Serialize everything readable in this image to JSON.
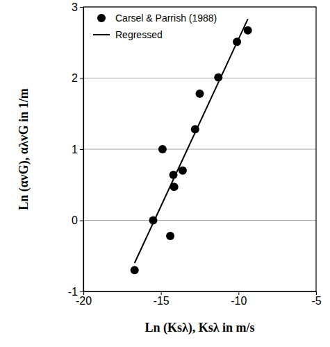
{
  "chart_data": {
    "type": "scatter",
    "x_label": "Ln (Ksλ), Ksλ in m/s",
    "y_label": "Ln (αvG), αλvG in 1/m",
    "xlim": [
      -20,
      -5
    ],
    "xticks": [
      -20,
      -15,
      -10,
      -5
    ],
    "ylim": [
      -1,
      3
    ],
    "yticks": [
      -1,
      0,
      1,
      2,
      3
    ],
    "grid": true,
    "legend": "upper left",
    "series": [
      {
        "name": "Carsel & Parrish (1988)",
        "type": "scatter",
        "marker": "circle",
        "color": "#000000",
        "x": [
          -16.7,
          -15.5,
          -14.9,
          -14.4,
          -14.2,
          -14.15,
          -13.6,
          -12.8,
          -12.5,
          -11.3,
          -10.1,
          -9.4
        ],
        "values": [
          -0.7,
          0.0,
          1.0,
          -0.22,
          0.64,
          0.47,
          0.7,
          1.28,
          1.78,
          2.01,
          2.51,
          2.67
        ]
      },
      {
        "name": "Regressed",
        "type": "line",
        "line_style": "solid",
        "color": "#000000",
        "x": [
          -16.7,
          -9.4
        ],
        "values": [
          -0.6,
          2.83
        ]
      }
    ]
  }
}
